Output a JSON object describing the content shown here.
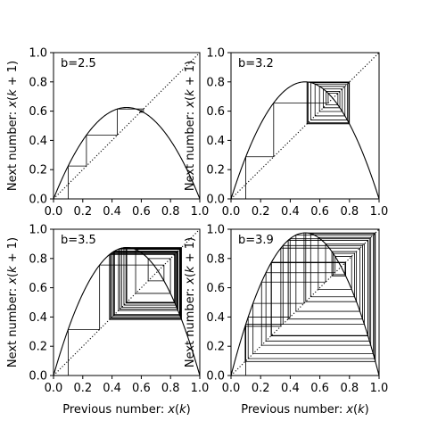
{
  "chart_data": [
    {
      "type": "line",
      "annotation": "b=2.5",
      "b": 2.5,
      "x0": 0.1,
      "iterations": 20,
      "xlim": [
        0,
        1
      ],
      "ylim": [
        0,
        1
      ],
      "xticks": [
        "0.0",
        "0.2",
        "0.4",
        "0.6",
        "0.8",
        "1.0"
      ],
      "yticks": [
        "0.0",
        "0.2",
        "0.4",
        "0.6",
        "0.8",
        "1.0"
      ],
      "xlabel": "",
      "ylabel": "Next number: x(k + 1)",
      "series": [
        {
          "kind": "map-curve",
          "function": "b*x*(1-x)"
        },
        {
          "kind": "identity",
          "function": "x",
          "style": "dotted"
        },
        {
          "kind": "cobweb"
        }
      ]
    },
    {
      "type": "line",
      "annotation": "b=3.2",
      "b": 3.2,
      "x0": 0.1,
      "iterations": 40,
      "xlim": [
        0,
        1
      ],
      "ylim": [
        0,
        1
      ],
      "xticks": [
        "0.0",
        "0.2",
        "0.4",
        "0.6",
        "0.8",
        "1.0"
      ],
      "yticks": [
        "0.0",
        "0.2",
        "0.4",
        "0.6",
        "0.8",
        "1.0"
      ],
      "xlabel": "",
      "ylabel": "Next number: x(k + 1)",
      "series": [
        {
          "kind": "map-curve",
          "function": "b*x*(1-x)"
        },
        {
          "kind": "identity",
          "function": "x",
          "style": "dotted"
        },
        {
          "kind": "cobweb"
        }
      ]
    },
    {
      "type": "line",
      "annotation": "b=3.5",
      "b": 3.5,
      "x0": 0.1,
      "iterations": 40,
      "xlim": [
        0,
        1
      ],
      "ylim": [
        0,
        1
      ],
      "xticks": [
        "0.0",
        "0.2",
        "0.4",
        "0.6",
        "0.8",
        "1.0"
      ],
      "yticks": [
        "0.0",
        "0.2",
        "0.4",
        "0.6",
        "0.8",
        "1.0"
      ],
      "xlabel": "Previous number: x(k)",
      "ylabel": "Next number: x(k + 1)",
      "series": [
        {
          "kind": "map-curve",
          "function": "b*x*(1-x)"
        },
        {
          "kind": "identity",
          "function": "x",
          "style": "dotted"
        },
        {
          "kind": "cobweb"
        }
      ]
    },
    {
      "type": "line",
      "annotation": "b=3.9",
      "b": 3.9,
      "x0": 0.1,
      "iterations": 40,
      "xlim": [
        0,
        1
      ],
      "ylim": [
        0,
        1
      ],
      "xticks": [
        "0.0",
        "0.2",
        "0.4",
        "0.6",
        "0.8",
        "1.0"
      ],
      "yticks": [
        "0.0",
        "0.2",
        "0.4",
        "0.6",
        "0.8",
        "1.0"
      ],
      "xlabel": "Previous number: x(k)",
      "ylabel": "Next number: x(k + 1)",
      "series": [
        {
          "kind": "map-curve",
          "function": "b*x*(1-x)"
        },
        {
          "kind": "identity",
          "function": "x",
          "style": "dotted"
        },
        {
          "kind": "cobweb"
        }
      ]
    }
  ]
}
